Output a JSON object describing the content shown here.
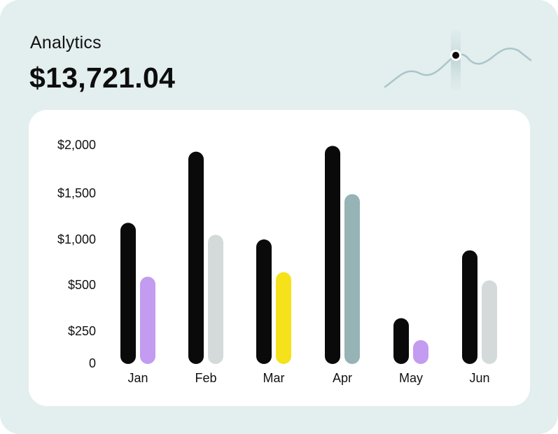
{
  "header": {
    "title": "Analytics",
    "total": "$13,721.04"
  },
  "sparkline": {
    "icon": "sparkline-icon",
    "color": "#a9c6c9"
  },
  "chart_data": {
    "type": "bar",
    "categories": [
      "Jan",
      "Feb",
      "Mar",
      "Apr",
      "May",
      "Jun"
    ],
    "y_ticks": [
      {
        "value": 0,
        "label": "0"
      },
      {
        "value": 250,
        "label": "$250"
      },
      {
        "value": 500,
        "label": "$500"
      },
      {
        "value": 1000,
        "label": "$1,000"
      },
      {
        "value": 1500,
        "label": "$1,500"
      },
      {
        "value": 2000,
        "label": "$2,000"
      }
    ],
    "series": [
      {
        "values": [
          1180,
          1930,
          1000,
          1990,
          320,
          880
        ],
        "colors": [
          "#0a0a0a",
          "#0a0a0a",
          "#0a0a0a",
          "#0a0a0a",
          "#0a0a0a",
          "#0a0a0a"
        ]
      },
      {
        "values": [
          590,
          1050,
          640,
          1490,
          180,
          550
        ],
        "colors": [
          "#c39bf0",
          "#d4dada",
          "#f5e21a",
          "#96b3b5",
          "#c39bf0",
          "#d4dada"
        ]
      }
    ],
    "ylim": [
      0,
      2000
    ],
    "grid": false,
    "legend": "none"
  }
}
